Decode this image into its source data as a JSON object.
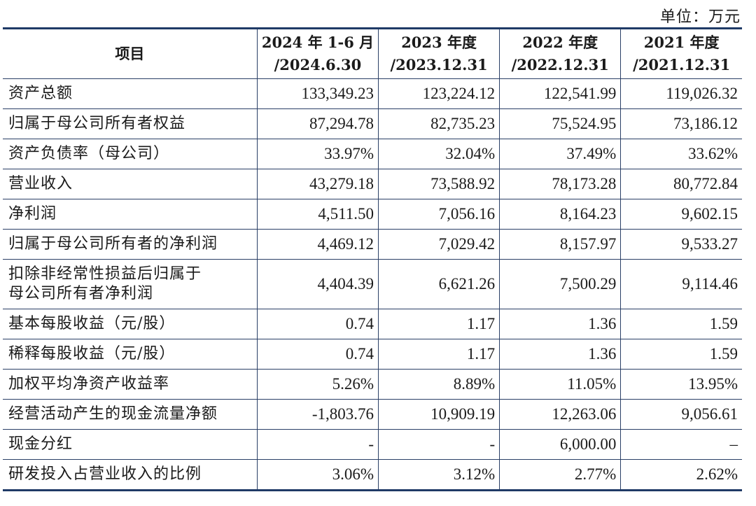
{
  "unit_note": "单位：万元",
  "header": {
    "item": "项目",
    "periods": [
      {
        "line1": "2024 年 1-6 月",
        "line2": "/2024.6.30"
      },
      {
        "line1": "2023 年度",
        "line2": "/2023.12.31"
      },
      {
        "line1": "2022 年度",
        "line2": "/2022.12.31"
      },
      {
        "line1": "2021 年度",
        "line2": "/2021.12.31"
      }
    ]
  },
  "rows": [
    {
      "label": "资产总额",
      "values": [
        "133,349.23",
        "123,224.12",
        "122,541.99",
        "119,026.32"
      ]
    },
    {
      "label": "归属于母公司所有者权益",
      "values": [
        "87,294.78",
        "82,735.23",
        "75,524.95",
        "73,186.12"
      ]
    },
    {
      "label": "资产负债率（母公司）",
      "values": [
        "33.97%",
        "32.04%",
        "37.49%",
        "33.62%"
      ]
    },
    {
      "label": "营业收入",
      "values": [
        "43,279.18",
        "73,588.92",
        "78,173.28",
        "80,772.84"
      ]
    },
    {
      "label": "净利润",
      "values": [
        "4,511.50",
        "7,056.16",
        "8,164.23",
        "9,602.15"
      ]
    },
    {
      "label": "归属于母公司所有者的净利润",
      "values": [
        "4,469.12",
        "7,029.42",
        "8,157.97",
        "9,533.27"
      ]
    },
    {
      "label_line1": "扣除非经常性损益后归属于",
      "label_line2": "母公司所有者净利润",
      "values": [
        "4,404.39",
        "6,621.26",
        "7,500.29",
        "9,114.46"
      ]
    },
    {
      "label": "基本每股收益（元/股）",
      "values": [
        "0.74",
        "1.17",
        "1.36",
        "1.59"
      ]
    },
    {
      "label": "稀释每股收益（元/股）",
      "values": [
        "0.74",
        "1.17",
        "1.36",
        "1.59"
      ]
    },
    {
      "label": "加权平均净资产收益率",
      "values": [
        "5.26%",
        "8.89%",
        "11.05%",
        "13.95%"
      ]
    },
    {
      "label": "经营活动产生的现金流量净额",
      "values": [
        "-1,803.76",
        "10,909.19",
        "12,263.06",
        "9,056.61"
      ]
    },
    {
      "label": "现金分红",
      "values": [
        "-",
        "-",
        "6,000.00",
        "–"
      ]
    },
    {
      "label": "研发投入占营业收入的比例",
      "values": [
        "3.06%",
        "3.12%",
        "2.77%",
        "2.62%"
      ]
    }
  ]
}
